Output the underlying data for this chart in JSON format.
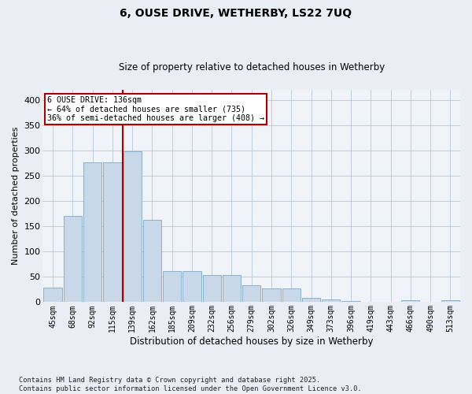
{
  "title": "6, OUSE DRIVE, WETHERBY, LS22 7UQ",
  "subtitle": "Size of property relative to detached houses in Wetherby",
  "xlabel": "Distribution of detached houses by size in Wetherby",
  "ylabel": "Number of detached properties",
  "categories": [
    "45sqm",
    "68sqm",
    "92sqm",
    "115sqm",
    "139sqm",
    "162sqm",
    "185sqm",
    "209sqm",
    "232sqm",
    "256sqm",
    "279sqm",
    "302sqm",
    "326sqm",
    "349sqm",
    "373sqm",
    "396sqm",
    "419sqm",
    "443sqm",
    "466sqm",
    "490sqm",
    "513sqm"
  ],
  "values": [
    29,
    171,
    277,
    277,
    298,
    162,
    62,
    62,
    54,
    54,
    33,
    27,
    27,
    9,
    5,
    2,
    1,
    1,
    4,
    1,
    4
  ],
  "bar_color": "#c8d8e8",
  "bar_edge_color": "#7aaac8",
  "marker_line_color": "#aa0000",
  "annotation_text": "6 OUSE DRIVE: 136sqm\n← 64% of detached houses are smaller (735)\n36% of semi-detached houses are larger (408) →",
  "annotation_box_color": "#ffffff",
  "annotation_box_edge": "#aa0000",
  "ylim": [
    0,
    420
  ],
  "yticks": [
    0,
    50,
    100,
    150,
    200,
    250,
    300,
    350,
    400
  ],
  "footer": "Contains HM Land Registry data © Crown copyright and database right 2025.\nContains public sector information licensed under the Open Government Licence v3.0.",
  "bg_color": "#e8eef4",
  "plot_bg_color": "#f0f4f8",
  "grid_color": "#b8c8d8",
  "title_fontsize": 10,
  "subtitle_fontsize": 8.5
}
